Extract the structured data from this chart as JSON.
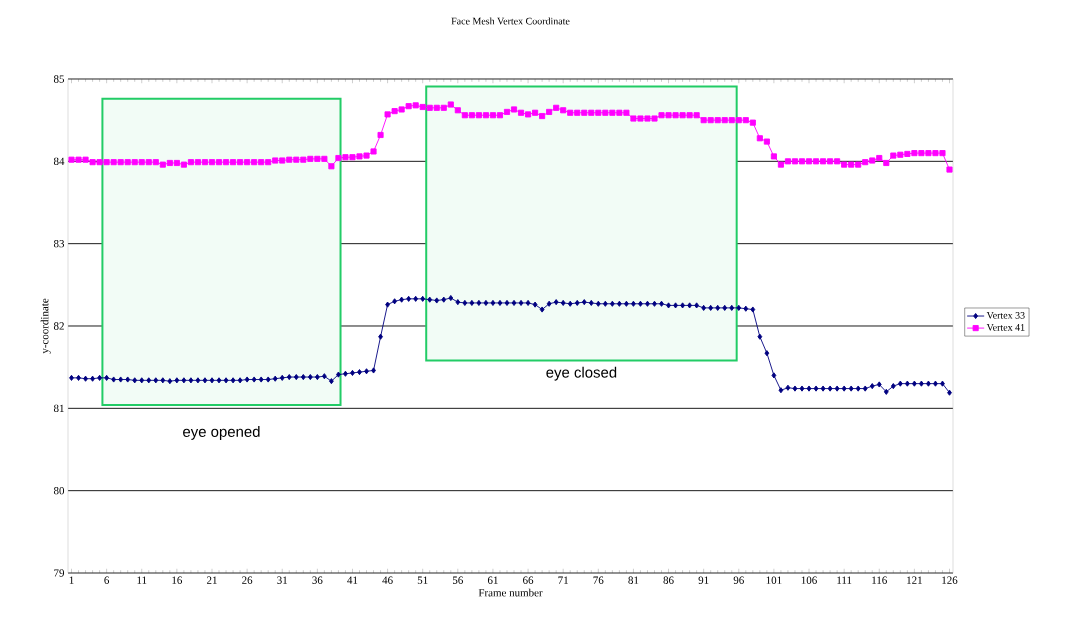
{
  "chart_data": {
    "type": "line",
    "title": "Face Mesh Vertex Coordinate",
    "xlabel": "Frame number",
    "ylabel": "y-coordinate",
    "x": [
      1,
      2,
      3,
      4,
      5,
      6,
      7,
      8,
      9,
      10,
      11,
      12,
      13,
      14,
      15,
      16,
      17,
      18,
      19,
      20,
      21,
      22,
      23,
      24,
      25,
      26,
      27,
      28,
      29,
      30,
      31,
      32,
      33,
      34,
      35,
      36,
      37,
      38,
      39,
      40,
      41,
      42,
      43,
      44,
      45,
      46,
      47,
      48,
      49,
      50,
      51,
      52,
      53,
      54,
      55,
      56,
      57,
      58,
      59,
      60,
      61,
      62,
      63,
      64,
      65,
      66,
      67,
      68,
      69,
      70,
      71,
      72,
      73,
      74,
      75,
      76,
      77,
      78,
      79,
      80,
      81,
      82,
      83,
      84,
      85,
      86,
      87,
      88,
      89,
      90,
      91,
      92,
      93,
      94,
      95,
      96,
      97,
      98,
      99,
      100,
      101,
      102,
      103,
      104,
      105,
      106,
      107,
      108,
      109,
      110,
      111,
      112,
      113,
      114,
      115,
      116,
      117,
      118,
      119,
      120,
      121,
      122,
      123,
      124,
      125,
      126
    ],
    "series": [
      {
        "name": "Vertex 33",
        "color": "#000080",
        "marker": "diamond",
        "values": [
          81.37,
          81.37,
          81.36,
          81.36,
          81.37,
          81.37,
          81.35,
          81.35,
          81.35,
          81.34,
          81.34,
          81.34,
          81.34,
          81.34,
          81.33,
          81.34,
          81.34,
          81.34,
          81.34,
          81.34,
          81.34,
          81.34,
          81.34,
          81.34,
          81.34,
          81.35,
          81.35,
          81.35,
          81.35,
          81.36,
          81.37,
          81.38,
          81.38,
          81.38,
          81.38,
          81.38,
          81.39,
          81.33,
          81.41,
          81.42,
          81.43,
          81.44,
          81.45,
          81.46,
          81.87,
          82.26,
          82.3,
          82.32,
          82.33,
          82.33,
          82.33,
          82.32,
          82.31,
          82.32,
          82.34,
          82.29,
          82.28,
          82.28,
          82.28,
          82.28,
          82.28,
          82.28,
          82.28,
          82.28,
          82.28,
          82.28,
          82.26,
          82.2,
          82.27,
          82.29,
          82.28,
          82.27,
          82.28,
          82.29,
          82.28,
          82.27,
          82.27,
          82.27,
          82.27,
          82.27,
          82.27,
          82.27,
          82.27,
          82.27,
          82.27,
          82.25,
          82.25,
          82.25,
          82.25,
          82.25,
          82.22,
          82.22,
          82.22,
          82.22,
          82.22,
          82.22,
          82.21,
          82.2,
          81.87,
          81.67,
          81.4,
          81.22,
          81.25,
          81.24,
          81.24,
          81.24,
          81.24,
          81.24,
          81.24,
          81.24,
          81.24,
          81.24,
          81.24,
          81.24,
          81.27,
          81.29,
          81.2,
          81.27,
          81.3,
          81.3,
          81.3,
          81.3,
          81.3,
          81.3,
          81.3,
          81.19
        ]
      },
      {
        "name": "Vertex 41",
        "color": "#ff00ff",
        "marker": "square",
        "values": [
          84.02,
          84.02,
          84.02,
          83.99,
          83.99,
          83.99,
          83.99,
          83.99,
          83.99,
          83.99,
          83.99,
          83.99,
          83.99,
          83.96,
          83.98,
          83.98,
          83.96,
          83.99,
          83.99,
          83.99,
          83.99,
          83.99,
          83.99,
          83.99,
          83.99,
          83.99,
          83.99,
          83.99,
          83.99,
          84.01,
          84.01,
          84.02,
          84.02,
          84.02,
          84.03,
          84.03,
          84.03,
          83.94,
          84.04,
          84.05,
          84.05,
          84.06,
          84.07,
          84.12,
          84.32,
          84.57,
          84.61,
          84.63,
          84.67,
          84.68,
          84.66,
          84.65,
          84.65,
          84.65,
          84.69,
          84.62,
          84.56,
          84.56,
          84.56,
          84.56,
          84.56,
          84.56,
          84.6,
          84.63,
          84.59,
          84.57,
          84.59,
          84.55,
          84.6,
          84.65,
          84.62,
          84.59,
          84.59,
          84.59,
          84.59,
          84.59,
          84.59,
          84.59,
          84.59,
          84.59,
          84.52,
          84.52,
          84.52,
          84.52,
          84.56,
          84.56,
          84.56,
          84.56,
          84.56,
          84.56,
          84.5,
          84.5,
          84.5,
          84.5,
          84.5,
          84.5,
          84.5,
          84.47,
          84.28,
          84.24,
          84.06,
          83.96,
          84.0,
          84.0,
          84.0,
          84.0,
          84.0,
          84.0,
          84.0,
          84.0,
          83.96,
          83.96,
          83.96,
          83.99,
          84.01,
          84.04,
          83.98,
          84.07,
          84.08,
          84.09,
          84.1,
          84.1,
          84.1,
          84.1,
          84.1,
          83.9
        ]
      }
    ],
    "xlim": [
      0.5,
      126.5
    ],
    "xticks": [
      1,
      6,
      11,
      16,
      21,
      26,
      31,
      36,
      41,
      46,
      51,
      56,
      61,
      66,
      71,
      76,
      81,
      86,
      91,
      96,
      101,
      106,
      111,
      116,
      121,
      126
    ],
    "ylim": [
      79,
      85
    ],
    "yticks": [
      79,
      80,
      81,
      82,
      83,
      84,
      85
    ],
    "grid": "y",
    "legend": "right",
    "line_style": "solid",
    "bands": [
      {
        "axis": "x",
        "from": 5.4,
        "to": 39.3,
        "label": "eye opened",
        "color": "#22cc66"
      },
      {
        "axis": "x",
        "from": 51.5,
        "to": 95.7,
        "label": "eye closed",
        "color": "#22cc66"
      }
    ]
  }
}
